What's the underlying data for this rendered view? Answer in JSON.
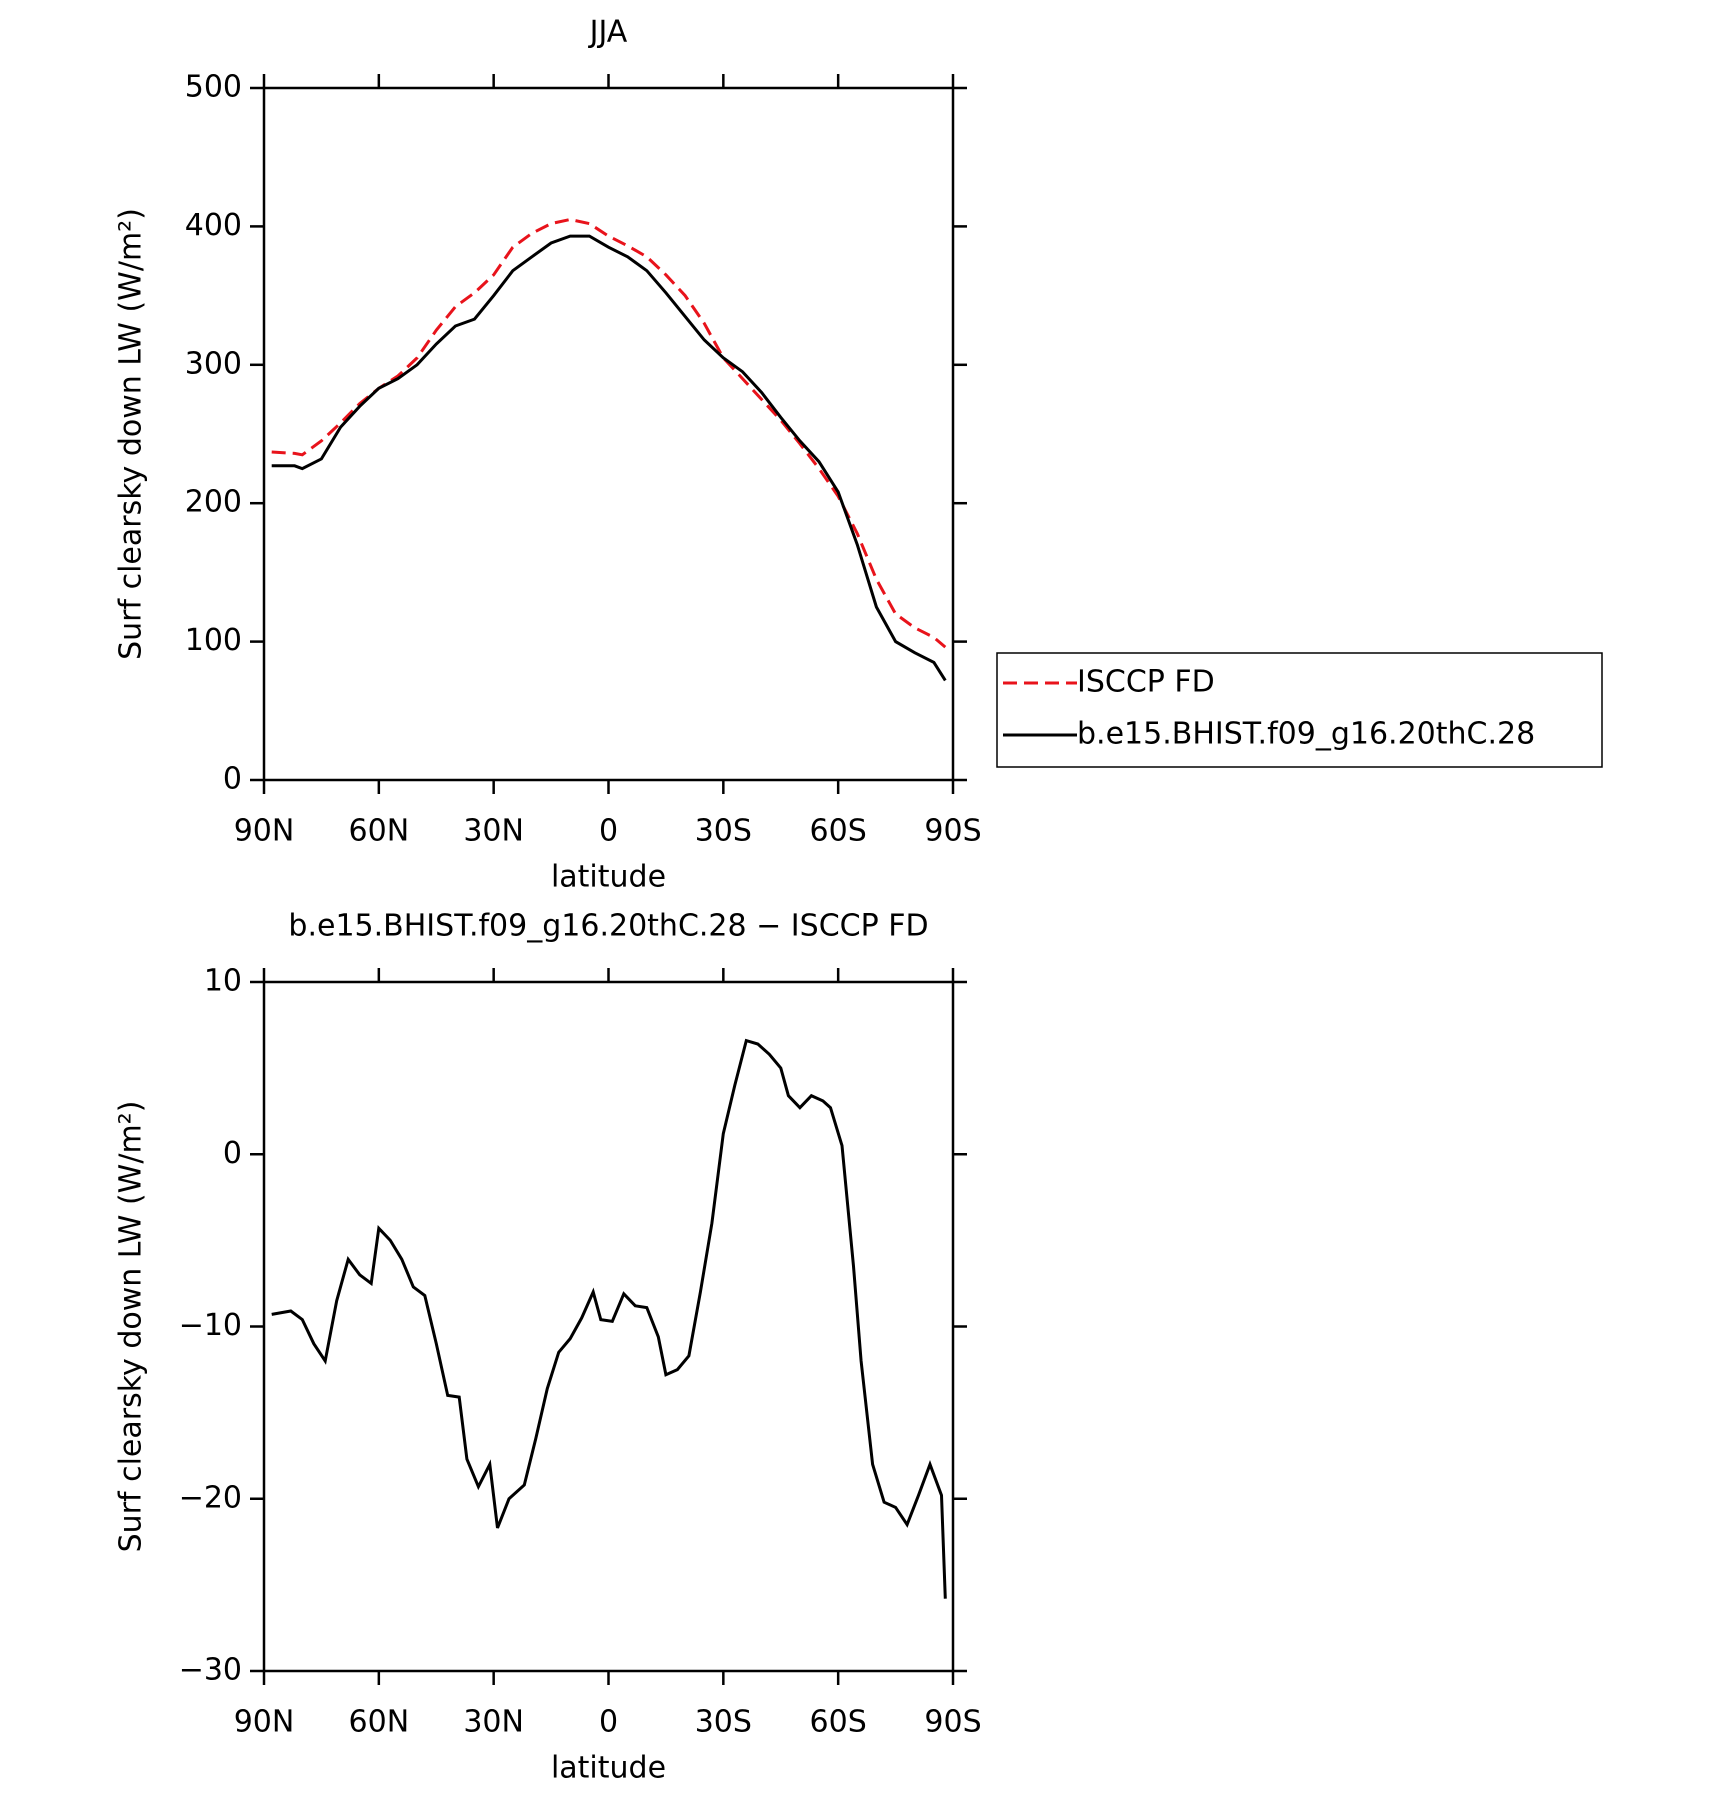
{
  "chart_data": [
    {
      "type": "line",
      "title": "JJA",
      "xlabel": "latitude",
      "ylabel": "Surf clearsky down LW (W/m²)",
      "xlim": [
        90,
        -90
      ],
      "xticks": [
        {
          "value": 90,
          "label": "90N"
        },
        {
          "value": 60,
          "label": "60N"
        },
        {
          "value": 30,
          "label": "30N"
        },
        0,
        {
          "value": -30,
          "label": "30S"
        },
        {
          "value": -60,
          "label": "60S"
        },
        {
          "value": -90,
          "label": "90S"
        }
      ],
      "ylim": [
        0,
        500
      ],
      "yticks": [
        0,
        100,
        200,
        300,
        400,
        500
      ],
      "x": [
        88,
        82,
        80,
        75,
        70,
        65,
        60,
        55,
        50,
        45,
        40,
        35,
        30,
        25,
        20,
        15,
        10,
        5,
        0,
        -5,
        -10,
        -15,
        -20,
        -25,
        -30,
        -35,
        -40,
        -45,
        -50,
        -55,
        -60,
        -65,
        -70,
        -75,
        -80,
        -85,
        -88
      ],
      "series": [
        {
          "name": "ISCCP FD",
          "color": "#e8131b",
          "line_style": "dashed",
          "values": [
            237,
            236,
            235,
            245,
            258,
            272,
            283,
            292,
            305,
            325,
            342,
            352,
            365,
            385,
            395,
            402,
            405,
            402,
            393,
            386,
            378,
            365,
            350,
            330,
            305,
            290,
            275,
            260,
            243,
            225,
            205,
            178,
            145,
            120,
            110,
            103,
            96
          ]
        },
        {
          "name": "b.e15.BHIST.f09_g16.20thC.28",
          "color": "#000000",
          "line_style": "solid",
          "values": [
            227,
            227,
            225,
            232,
            255,
            270,
            283,
            290,
            300,
            315,
            328,
            333,
            350,
            368,
            378,
            388,
            393,
            393,
            385,
            378,
            368,
            352,
            335,
            318,
            305,
            295,
            280,
            262,
            245,
            230,
            208,
            170,
            125,
            100,
            92,
            85,
            72
          ]
        }
      ]
    },
    {
      "type": "line",
      "title": "b.e15.BHIST.f09_g16.20thC.28 − ISCCP FD",
      "xlabel": "latitude",
      "ylabel": "Surf clearsky down LW (W/m²)",
      "xlim": [
        90,
        -90
      ],
      "xticks": [
        {
          "value": 90,
          "label": "90N"
        },
        {
          "value": 60,
          "label": "60N"
        },
        {
          "value": 30,
          "label": "30N"
        },
        0,
        {
          "value": -30,
          "label": "30S"
        },
        {
          "value": -60,
          "label": "60S"
        },
        {
          "value": -90,
          "label": "90S"
        }
      ],
      "ylim": [
        -30,
        10
      ],
      "yticks": [
        {
          "value": -30,
          "label": "−30"
        },
        {
          "value": -20,
          "label": "−20"
        },
        {
          "value": -10,
          "label": "−10"
        },
        0,
        10
      ],
      "x": [
        88,
        83,
        80,
        77,
        74,
        71,
        68,
        65,
        62,
        60,
        57,
        54,
        51,
        48,
        45,
        42,
        39,
        37,
        34,
        31,
        29,
        26,
        22,
        19,
        16,
        13,
        10,
        7,
        4,
        2,
        -1,
        -4,
        -7,
        -10,
        -13,
        -15,
        -18,
        -21,
        -24,
        -27,
        -30,
        -33,
        -36,
        -39,
        -42,
        -45,
        -47,
        -50,
        -53,
        -56,
        -58,
        -61,
        -64,
        -66,
        -69,
        -72,
        -75,
        -78,
        -81,
        -84,
        -87,
        -88
      ],
      "series": [
        {
          "color": "#000000",
          "line_style": "solid",
          "values": [
            -9.3,
            -9.1,
            -9.6,
            -11,
            -12,
            -8.5,
            -6.1,
            -7,
            -7.5,
            -4.3,
            -5,
            -6.1,
            -7.7,
            -8.2,
            -11,
            -14,
            -14.1,
            -17.7,
            -19.3,
            -18,
            -21.7,
            -20,
            -19.2,
            -16.5,
            -13.6,
            -11.5,
            -10.7,
            -9.5,
            -8,
            -9.6,
            -9.7,
            -8.1,
            -8.8,
            -8.9,
            -10.6,
            -12.8,
            -12.5,
            -11.7,
            -8,
            -4,
            1.2,
            4,
            6.6,
            6.4,
            5.8,
            5,
            3.4,
            2.7,
            3.4,
            3.1,
            2.7,
            0.5,
            -6.5,
            -12,
            -18,
            -20.2,
            -20.5,
            -21.5,
            -19.8,
            -18,
            -19.8,
            -25.8
          ]
        }
      ]
    }
  ]
}
